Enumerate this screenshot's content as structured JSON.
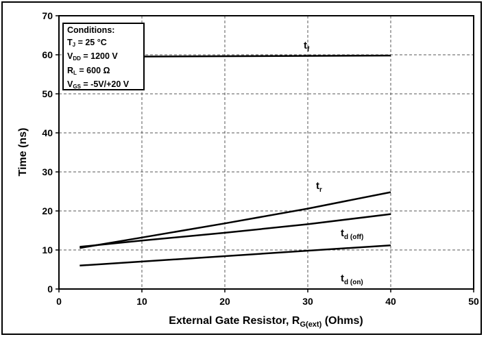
{
  "chart_data": {
    "type": "line",
    "xlabel": {
      "main": "External Gate Resistor, R",
      "sub": "G(ext)",
      "tail": " (Ohms)"
    },
    "ylabel": "Time (ns)",
    "xlim": [
      0,
      50
    ],
    "ylim": [
      0,
      70
    ],
    "x_ticks": [
      0,
      10,
      20,
      30,
      40,
      50
    ],
    "y_ticks": [
      0,
      10,
      20,
      30,
      40,
      50,
      60,
      70
    ],
    "grid": true,
    "series": [
      {
        "name": "t_f",
        "label_main": "t",
        "label_sub": "f",
        "x": [
          2.5,
          40
        ],
        "y": [
          59.5,
          59.8
        ]
      },
      {
        "name": "t_r",
        "label_main": "t",
        "label_sub": "r",
        "x": [
          2.5,
          10,
          20,
          30,
          40
        ],
        "y": [
          10.5,
          13.2,
          16.8,
          20.6,
          24.8
        ]
      },
      {
        "name": "t_d(off)",
        "label_main": "t",
        "label_sub": "d (off)",
        "x": [
          2.5,
          10,
          20,
          30,
          40
        ],
        "y": [
          10.8,
          12.4,
          14.4,
          16.6,
          19.2
        ]
      },
      {
        "name": "t_d(on)",
        "label_main": "t",
        "label_sub": "d (on)",
        "x": [
          2.5,
          40
        ],
        "y": [
          6.0,
          11.2
        ]
      }
    ],
    "annotation": {
      "title": "Conditions:",
      "lines": [
        {
          "main": "T",
          "sub": "J",
          "rest": " = 25 °C"
        },
        {
          "main": "V",
          "sub": "DD",
          "rest": " = 1200 V"
        },
        {
          "main": "R",
          "sub": "L",
          "rest": " = 600 Ω"
        },
        {
          "main": "V",
          "sub": "GS",
          "rest": " = -5V/+20 V"
        }
      ]
    }
  }
}
